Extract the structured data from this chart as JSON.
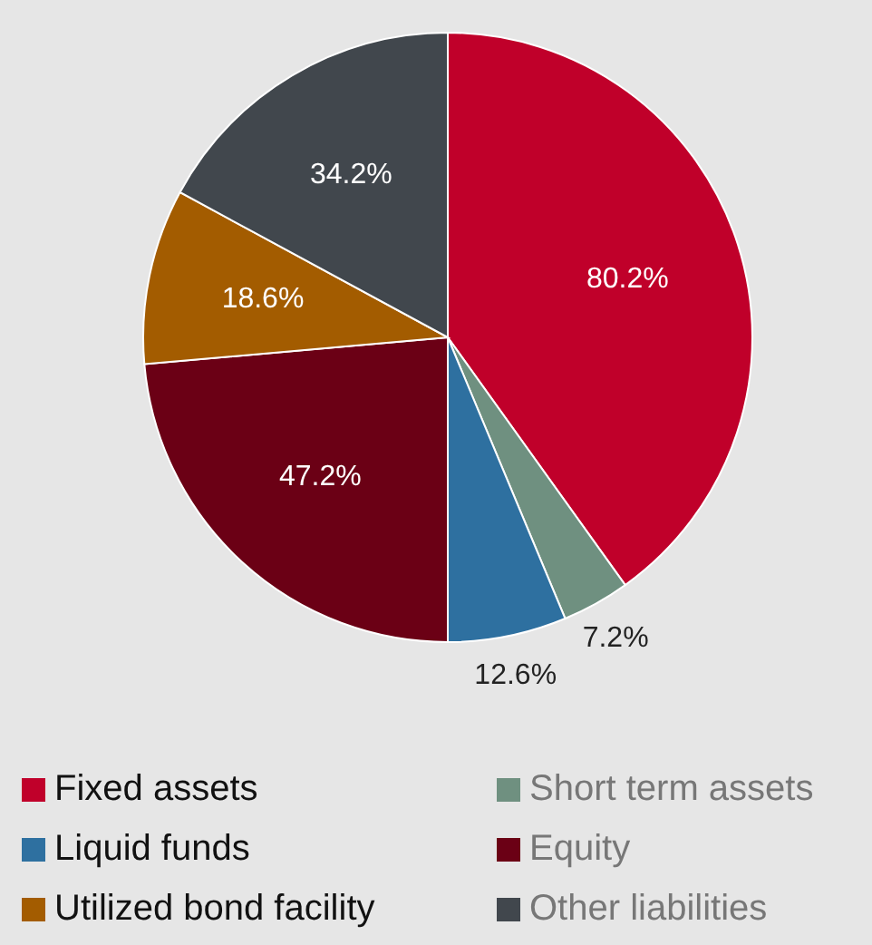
{
  "chart_data": {
    "type": "pie",
    "categories": [
      "Fixed assets",
      "Short term assets",
      "Liquid funds",
      "Equity",
      "Utilized bond facility",
      "Other liabilities"
    ],
    "values": [
      80.2,
      7.2,
      12.6,
      47.2,
      18.6,
      34.2
    ],
    "colors": [
      "#c0002a",
      "#6f9080",
      "#2e70a0",
      "#6b0015",
      "#a35c00",
      "#41474d"
    ],
    "value_labels": [
      "80.2%",
      "7.2%",
      "12.6%",
      "47.2%",
      "18.6%",
      "34.2%"
    ],
    "legend": "bottom"
  }
}
